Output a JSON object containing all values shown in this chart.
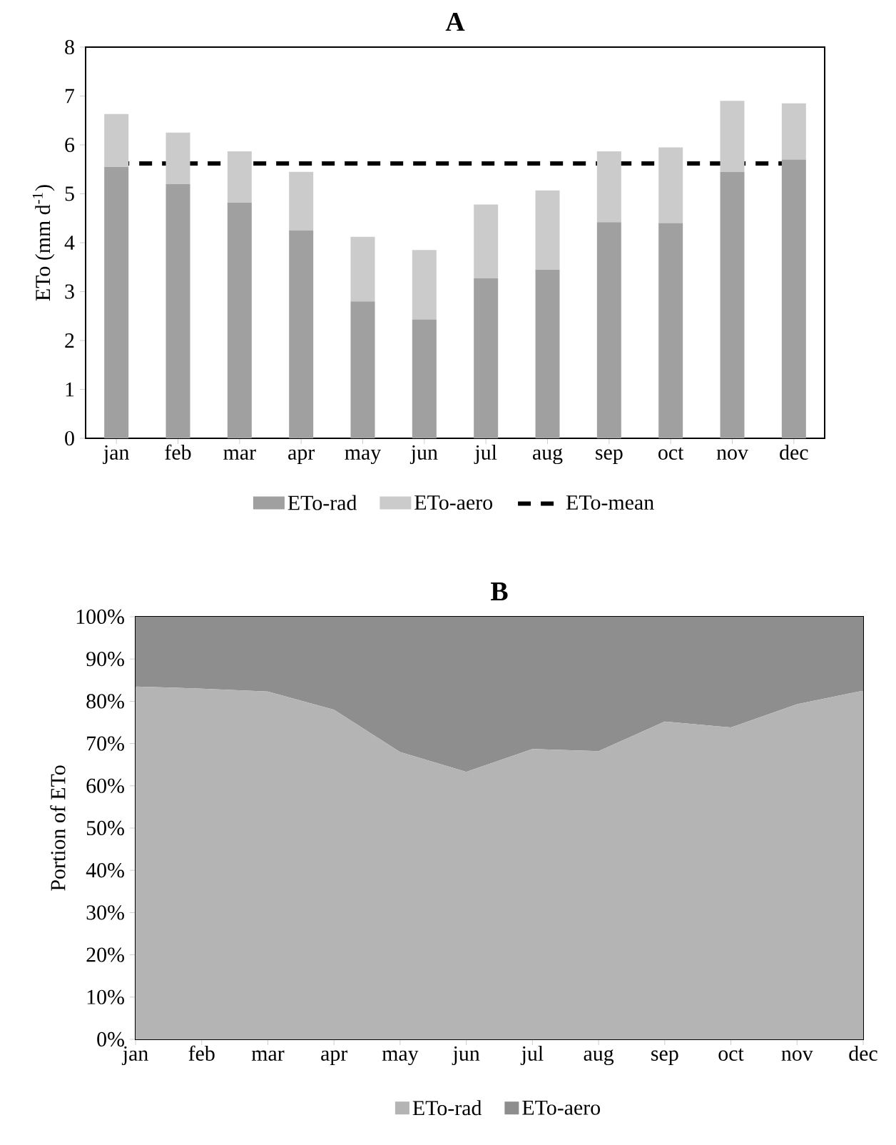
{
  "chart_data": [
    {
      "type": "bar",
      "stacked": true,
      "title": "A",
      "ylabel": "ETo (mm d$^{-1}$)",
      "categories": [
        "jan",
        "feb",
        "mar",
        "apr",
        "may",
        "jun",
        "jul",
        "aug",
        "sep",
        "oct",
        "nov",
        "dec"
      ],
      "series": [
        {
          "name": "ETo-rad",
          "color": "#a0a0a0",
          "values": [
            5.55,
            5.2,
            4.82,
            4.25,
            2.8,
            2.43,
            3.27,
            3.45,
            4.42,
            4.4,
            5.45,
            5.7
          ]
        },
        {
          "name": "ETo-aero",
          "color": "#cbcbcb",
          "values": [
            1.08,
            1.05,
            1.05,
            1.2,
            1.32,
            1.42,
            1.51,
            1.62,
            1.45,
            1.55,
            1.45,
            1.15
          ]
        }
      ],
      "ylim": [
        0,
        8
      ],
      "yticks": [
        0,
        1,
        2,
        3,
        4,
        5,
        6,
        7,
        8
      ],
      "ref_lines": [
        {
          "axis": "y",
          "value": 5.62,
          "label": "ETo-mean",
          "color": "#000000",
          "line_style": "dashed"
        }
      ],
      "legend": "bottom"
    },
    {
      "type": "area",
      "stacked": true,
      "title": "B",
      "ylabel": "Portion of ETo",
      "categories": [
        "jan",
        "feb",
        "mar",
        "apr",
        "may",
        "jun",
        "jul",
        "aug",
        "sep",
        "oct",
        "nov",
        "dec"
      ],
      "series": [
        {
          "name": "ETo-rad",
          "color": "#b4b4b4",
          "values": [
            83.5,
            83,
            82.3,
            78,
            68,
            63.3,
            68.7,
            68.2,
            75.2,
            73.8,
            79.3,
            82.5
          ]
        },
        {
          "name": "ETo-aero",
          "color": "#8e8e8e",
          "values": [
            16.5,
            17,
            17.7,
            22,
            32,
            36.7,
            31.3,
            31.8,
            24.8,
            26.2,
            20.7,
            17.5
          ]
        }
      ],
      "ylim": [
        0,
        100
      ],
      "yticks": [
        {
          "value": 0,
          "label": "0%"
        },
        {
          "value": 10,
          "label": "10%"
        },
        {
          "value": 20,
          "label": "20%"
        },
        {
          "value": 30,
          "label": "30%"
        },
        {
          "value": 40,
          "label": "40%"
        },
        {
          "value": 50,
          "label": "50%"
        },
        {
          "value": 60,
          "label": "60%"
        },
        {
          "value": 70,
          "label": "70%"
        },
        {
          "value": 80,
          "label": "80%"
        },
        {
          "value": 90,
          "label": "90%"
        },
        {
          "value": 100,
          "label": "100%"
        }
      ],
      "legend": "bottom"
    }
  ]
}
